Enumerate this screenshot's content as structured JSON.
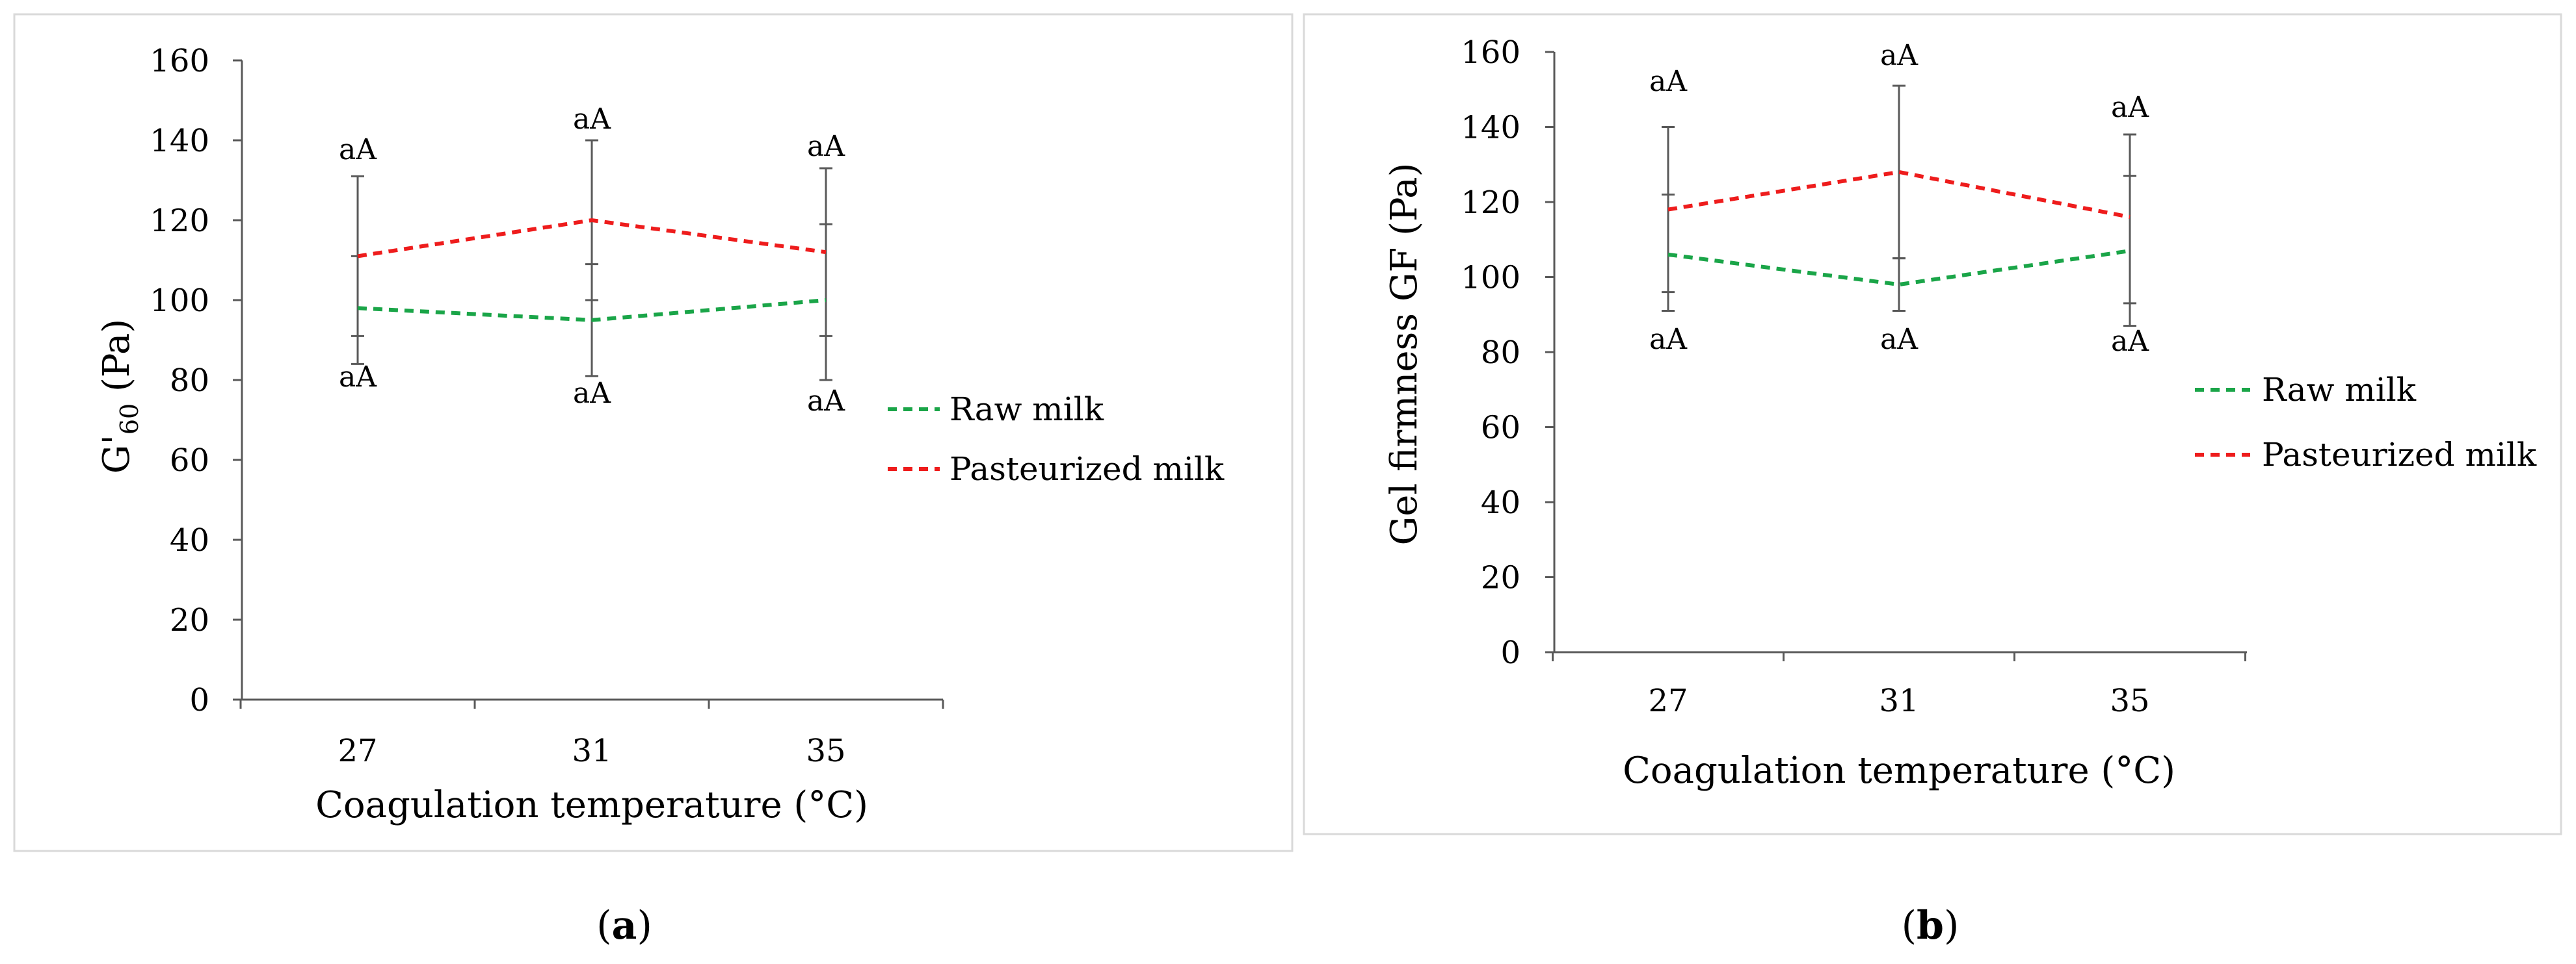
{
  "chart_data": [
    {
      "type": "line",
      "panel_label": "a",
      "categories": [
        "27",
        "31",
        "35"
      ],
      "series": [
        {
          "name": "Raw milk",
          "color": "#1aa548",
          "line_style": "dashed",
          "values": [
            98,
            95,
            100
          ],
          "err_low": [
            84,
            81,
            80
          ],
          "err_high": [
            111,
            109,
            119
          ]
        },
        {
          "name": "Pasteurized milk",
          "color": "#ee1c1c",
          "line_style": "dashed",
          "values": [
            111,
            120,
            112
          ],
          "err_low": [
            91,
            100,
            91
          ],
          "err_high": [
            131,
            140,
            133
          ]
        }
      ],
      "annotations_top": [
        "aA",
        "aA",
        "aA"
      ],
      "annotations_bottom": [
        "aA",
        "aA",
        "aA"
      ],
      "y_tick_labels": [
        "0",
        "20",
        "40",
        "60",
        "80",
        "100",
        "120",
        "140",
        "160"
      ],
      "ylim": [
        0,
        160
      ],
      "xlabel": "Coagulation temperature (°C)",
      "ylabel_main": "G'",
      "ylabel_sub": "60",
      "ylabel_rest": " (Pa)",
      "grid": false,
      "legend_position": "right"
    },
    {
      "type": "line",
      "panel_label": "b",
      "categories": [
        "27",
        "31",
        "35"
      ],
      "series": [
        {
          "name": "Raw milk",
          "color": "#1aa548",
          "line_style": "dashed",
          "values": [
            106,
            98,
            107
          ],
          "err_low": [
            91,
            91,
            87
          ],
          "err_high": [
            122,
            105,
            127
          ]
        },
        {
          "name": "Pasteurized milk",
          "color": "#ee1c1c",
          "line_style": "dashed",
          "values": [
            118,
            128,
            116
          ],
          "err_low": [
            96,
            105,
            93
          ],
          "err_high": [
            140,
            151,
            138
          ]
        }
      ],
      "annotations_top": [
        "aA",
        "aA",
        "aA"
      ],
      "annotations_bottom": [
        "aA",
        "aA",
        "aA"
      ],
      "y_tick_labels": [
        "0",
        "20",
        "40",
        "60",
        "80",
        "100",
        "120",
        "140",
        "160"
      ],
      "ylim": [
        0,
        160
      ],
      "xlabel": "Coagulation temperature (°C)",
      "ylabel": "Gel firmness GF (Pa)",
      "grid": false,
      "legend_position": "right"
    }
  ],
  "captions": [
    "a",
    "b"
  ]
}
